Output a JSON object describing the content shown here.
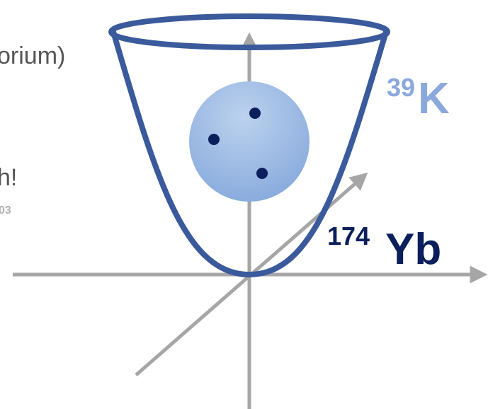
{
  "text": {
    "line1": "orium)",
    "line2": "h!",
    "note": "03"
  },
  "labels": [
    {
      "mass": "39",
      "element": "K"
    },
    {
      "mass": "174",
      "element": "Yb"
    }
  ]
}
